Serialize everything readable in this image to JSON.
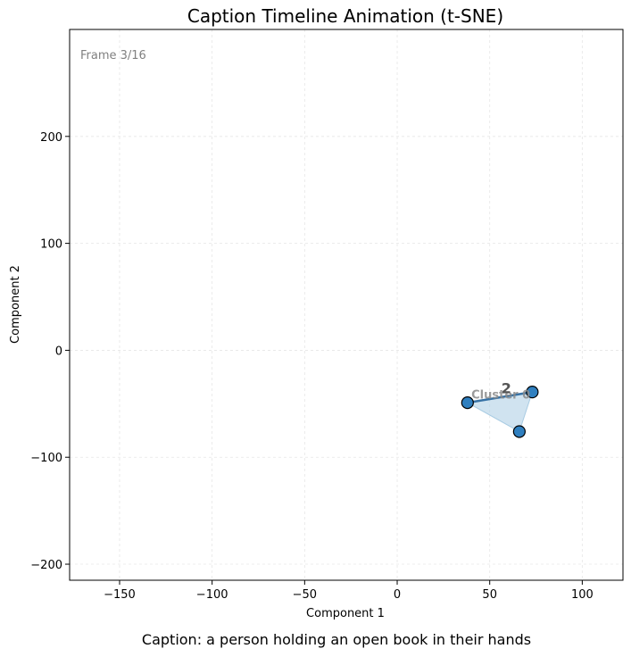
{
  "chart_data": {
    "type": "scatter",
    "title": "Caption Timeline Animation (t-SNE)",
    "xlabel": "Component 1",
    "ylabel": "Component 2",
    "xlim": [
      -177,
      122
    ],
    "ylim": [
      -215,
      300
    ],
    "xticks": [
      -150,
      -100,
      -50,
      0,
      50,
      100
    ],
    "xtick_labels": [
      "−150",
      "−100",
      "−50",
      "0",
      "50",
      "100"
    ],
    "yticks": [
      -200,
      -100,
      0,
      100,
      200
    ],
    "ytick_labels": [
      "−200",
      "−100",
      "0",
      "100",
      "200"
    ],
    "grid": true,
    "frame_label": "Frame 3/16",
    "points": [
      {
        "x": 38,
        "y": -49
      },
      {
        "x": 73,
        "y": -39
      },
      {
        "x": 66,
        "y": -76
      }
    ],
    "trajectory": [
      {
        "x": 38,
        "y": -49
      },
      {
        "x": 73,
        "y": -39
      },
      {
        "x": 66,
        "y": -76
      }
    ],
    "cluster_hull": [
      {
        "x": 38,
        "y": -49
      },
      {
        "x": 73,
        "y": -39
      },
      {
        "x": 66,
        "y": -76
      }
    ],
    "cluster_label": {
      "text": "Cluster 0",
      "x": 56,
      "y": -45
    },
    "point_label": {
      "text": "2",
      "x": 59,
      "y": -40
    },
    "colors": {
      "point": "#2f7fbf",
      "point_edge": "#000000",
      "hull": "#a9cce3",
      "line": "#1f5f99",
      "grid": "#e6e6e6"
    },
    "caption": "Caption: a person holding an open book in their hands"
  }
}
